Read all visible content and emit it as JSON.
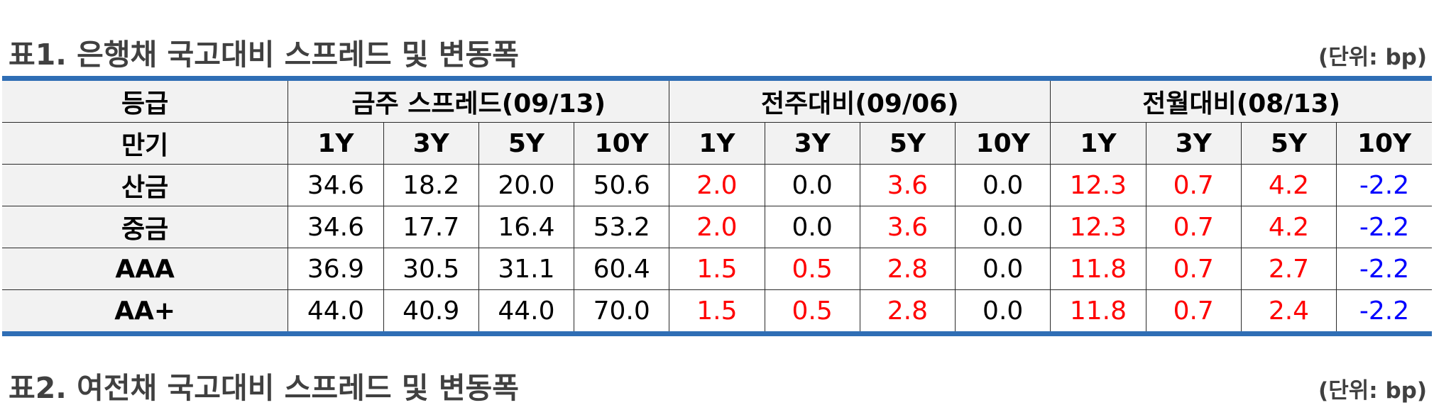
{
  "table1": {
    "title": "표1. 은행채 국고대비 스프레드 및 변동폭",
    "unit": "(단위: bp)",
    "grade_header": "등급",
    "maturity_header": "만기",
    "groups": [
      "금주 스프레드(09/13)",
      "전주대비(09/06)",
      "전월대비(08/13)"
    ],
    "maturities": [
      "1Y",
      "3Y",
      "5Y",
      "10Y"
    ],
    "rows": [
      {
        "label": "산금",
        "cells": [
          {
            "v": "34.6",
            "c": "val"
          },
          {
            "v": "18.2",
            "c": "val"
          },
          {
            "v": "20.0",
            "c": "val"
          },
          {
            "v": "50.6",
            "c": "val"
          },
          {
            "v": "2.0",
            "c": "pos"
          },
          {
            "v": "0.0",
            "c": "zero"
          },
          {
            "v": "3.6",
            "c": "pos"
          },
          {
            "v": "0.0",
            "c": "zero"
          },
          {
            "v": "12.3",
            "c": "pos"
          },
          {
            "v": "0.7",
            "c": "pos"
          },
          {
            "v": "4.2",
            "c": "pos"
          },
          {
            "v": "-2.2",
            "c": "neg"
          }
        ]
      },
      {
        "label": "중금",
        "cells": [
          {
            "v": "34.6",
            "c": "val"
          },
          {
            "v": "17.7",
            "c": "val"
          },
          {
            "v": "16.4",
            "c": "val"
          },
          {
            "v": "53.2",
            "c": "val"
          },
          {
            "v": "2.0",
            "c": "pos"
          },
          {
            "v": "0.0",
            "c": "zero"
          },
          {
            "v": "3.6",
            "c": "pos"
          },
          {
            "v": "0.0",
            "c": "zero"
          },
          {
            "v": "12.3",
            "c": "pos"
          },
          {
            "v": "0.7",
            "c": "pos"
          },
          {
            "v": "4.2",
            "c": "pos"
          },
          {
            "v": "-2.2",
            "c": "neg"
          }
        ]
      },
      {
        "label": "AAA",
        "cells": [
          {
            "v": "36.9",
            "c": "val"
          },
          {
            "v": "30.5",
            "c": "val"
          },
          {
            "v": "31.1",
            "c": "val"
          },
          {
            "v": "60.4",
            "c": "val"
          },
          {
            "v": "1.5",
            "c": "pos"
          },
          {
            "v": "0.5",
            "c": "pos"
          },
          {
            "v": "2.8",
            "c": "pos"
          },
          {
            "v": "0.0",
            "c": "zero"
          },
          {
            "v": "11.8",
            "c": "pos"
          },
          {
            "v": "0.7",
            "c": "pos"
          },
          {
            "v": "2.7",
            "c": "pos"
          },
          {
            "v": "-2.2",
            "c": "neg"
          }
        ]
      },
      {
        "label": "AA+",
        "cells": [
          {
            "v": "44.0",
            "c": "val"
          },
          {
            "v": "40.9",
            "c": "val"
          },
          {
            "v": "44.0",
            "c": "val"
          },
          {
            "v": "70.0",
            "c": "val"
          },
          {
            "v": "1.5",
            "c": "pos"
          },
          {
            "v": "0.5",
            "c": "pos"
          },
          {
            "v": "2.8",
            "c": "pos"
          },
          {
            "v": "0.0",
            "c": "zero"
          },
          {
            "v": "11.8",
            "c": "pos"
          },
          {
            "v": "0.7",
            "c": "pos"
          },
          {
            "v": "2.4",
            "c": "pos"
          },
          {
            "v": "-2.2",
            "c": "neg"
          }
        ]
      }
    ]
  },
  "table2": {
    "title": "표2. 여전채 국고대비 스프레드 및 변동폭",
    "unit": "(단위: bp)"
  },
  "colors": {
    "rule": "#2f6eb5",
    "increase": "#ff0000",
    "decrease": "#0000ff",
    "header_bg": "#f2f2f2",
    "title_text": "#404040"
  }
}
